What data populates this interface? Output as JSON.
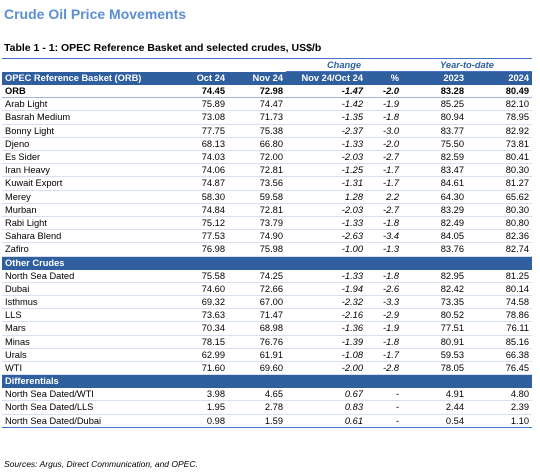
{
  "page_title": "Crude Oil Price Movements",
  "table_caption": "Table 1 - 1: OPEC Reference Basket and selected crudes, US$/b",
  "header": {
    "change_label": "Change",
    "ytd_label": "Year-to-date",
    "col_name": "OPEC Reference Basket (ORB)",
    "col_oct": "Oct 24",
    "col_nov": "Nov 24",
    "col_change": "Nov 24/Oct 24",
    "col_pct": "%",
    "col_2023": "2023",
    "col_2024": "2024"
  },
  "orb_rows": [
    {
      "name": "ORB",
      "oct": "74.45",
      "nov": "72.98",
      "chg": "-1.47",
      "pct": "-2.0",
      "y2023": "83.28",
      "y2024": "80.49"
    },
    {
      "name": "Arab Light",
      "oct": "75.89",
      "nov": "74.47",
      "chg": "-1.42",
      "pct": "-1.9",
      "y2023": "85.25",
      "y2024": "82.10"
    },
    {
      "name": "Basrah Medium",
      "oct": "73.08",
      "nov": "71.73",
      "chg": "-1.35",
      "pct": "-1.8",
      "y2023": "80.94",
      "y2024": "78.95"
    },
    {
      "name": "Bonny Light",
      "oct": "77.75",
      "nov": "75.38",
      "chg": "-2.37",
      "pct": "-3.0",
      "y2023": "83.77",
      "y2024": "82.92"
    },
    {
      "name": "Djeno",
      "oct": "68.13",
      "nov": "66.80",
      "chg": "-1.33",
      "pct": "-2.0",
      "y2023": "75.50",
      "y2024": "73.81"
    },
    {
      "name": "Es Sider",
      "oct": "74.03",
      "nov": "72.00",
      "chg": "-2.03",
      "pct": "-2.7",
      "y2023": "82.59",
      "y2024": "80.41"
    },
    {
      "name": "Iran Heavy",
      "oct": "74.06",
      "nov": "72.81",
      "chg": "-1.25",
      "pct": "-1.7",
      "y2023": "83.47",
      "y2024": "80.30"
    },
    {
      "name": "Kuwait Export",
      "oct": "74.87",
      "nov": "73.56",
      "chg": "-1.31",
      "pct": "-1.7",
      "y2023": "84.61",
      "y2024": "81.27"
    },
    {
      "name": "Merey",
      "oct": "58.30",
      "nov": "59.58",
      "chg": "1.28",
      "pct": "2.2",
      "y2023": "64.30",
      "y2024": "65.62"
    },
    {
      "name": "Murban",
      "oct": "74.84",
      "nov": "72.81",
      "chg": "-2.03",
      "pct": "-2.7",
      "y2023": "83.29",
      "y2024": "80.30"
    },
    {
      "name": "Rabi Light",
      "oct": "75.12",
      "nov": "73.79",
      "chg": "-1.33",
      "pct": "-1.8",
      "y2023": "82.49",
      "y2024": "80.80"
    },
    {
      "name": "Sahara Blend",
      "oct": "77.53",
      "nov": "74.90",
      "chg": "-2.63",
      "pct": "-3.4",
      "y2023": "84.05",
      "y2024": "82.36"
    },
    {
      "name": "Zafiro",
      "oct": "76.98",
      "nov": "75.98",
      "chg": "-1.00",
      "pct": "-1.3",
      "y2023": "83.76",
      "y2024": "82.74"
    }
  ],
  "other_label": "Other Crudes",
  "other_rows": [
    {
      "name": "North Sea Dated",
      "oct": "75.58",
      "nov": "74.25",
      "chg": "-1.33",
      "pct": "-1.8",
      "y2023": "82.95",
      "y2024": "81.25"
    },
    {
      "name": "Dubai",
      "oct": "74.60",
      "nov": "72.66",
      "chg": "-1.94",
      "pct": "-2.6",
      "y2023": "82.42",
      "y2024": "80.14"
    },
    {
      "name": "Isthmus",
      "oct": "69.32",
      "nov": "67.00",
      "chg": "-2.32",
      "pct": "-3.3",
      "y2023": "73.35",
      "y2024": "74.58"
    },
    {
      "name": "LLS",
      "oct": "73.63",
      "nov": "71.47",
      "chg": "-2.16",
      "pct": "-2.9",
      "y2023": "80.52",
      "y2024": "78.86"
    },
    {
      "name": "Mars",
      "oct": "70.34",
      "nov": "68.98",
      "chg": "-1.36",
      "pct": "-1.9",
      "y2023": "77.51",
      "y2024": "76.11"
    },
    {
      "name": "Minas",
      "oct": "78.15",
      "nov": "76.76",
      "chg": "-1.39",
      "pct": "-1.8",
      "y2023": "80.91",
      "y2024": "85.16"
    },
    {
      "name": "Urals",
      "oct": "62.99",
      "nov": "61.91",
      "chg": "-1.08",
      "pct": "-1.7",
      "y2023": "59.53",
      "y2024": "66.38"
    },
    {
      "name": "WTI",
      "oct": "71.60",
      "nov": "69.60",
      "chg": "-2.00",
      "pct": "-2.8",
      "y2023": "78.05",
      "y2024": "76.45"
    }
  ],
  "diff_label": "Differentials",
  "diff_rows": [
    {
      "name": "North Sea Dated/WTI",
      "oct": "3.98",
      "nov": "4.65",
      "chg": "0.67",
      "pct": "-",
      "y2023": "4.91",
      "y2024": "4.80"
    },
    {
      "name": "North Sea Dated/LLS",
      "oct": "1.95",
      "nov": "2.78",
      "chg": "0.83",
      "pct": "-",
      "y2023": "2.44",
      "y2024": "2.39"
    },
    {
      "name": "North Sea Dated/Dubai",
      "oct": "0.98",
      "nov": "1.59",
      "chg": "0.61",
      "pct": "-",
      "y2023": "0.54",
      "y2024": "1.10"
    }
  ],
  "sources": "Sources: Argus, Direct Communication, and OPEC."
}
